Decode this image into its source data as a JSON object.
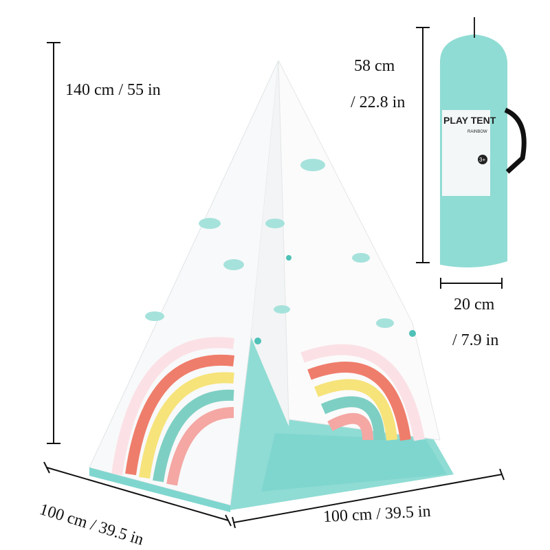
{
  "dimensions": {
    "height": "140 cm / 55 in",
    "bag_length_cm": "58 cm",
    "bag_length_in": "/ 22.8 in",
    "bag_width_cm": "20 cm",
    "bag_width_in": "/ 7.9 in",
    "depth": "100 cm / 39.5 in",
    "width": "100 cm / 39.5 in"
  },
  "bag_label": {
    "title": "PLAY TENT",
    "subtitle": "RAINBOW",
    "age_badge": "3+"
  },
  "colors": {
    "teal": "#7fd6cf",
    "rainbow": [
      "#f4a7a3",
      "#ef7d6b",
      "#f6e37a",
      "#fdf6c8",
      "#7ecfc3",
      "#fbe1e6"
    ]
  }
}
